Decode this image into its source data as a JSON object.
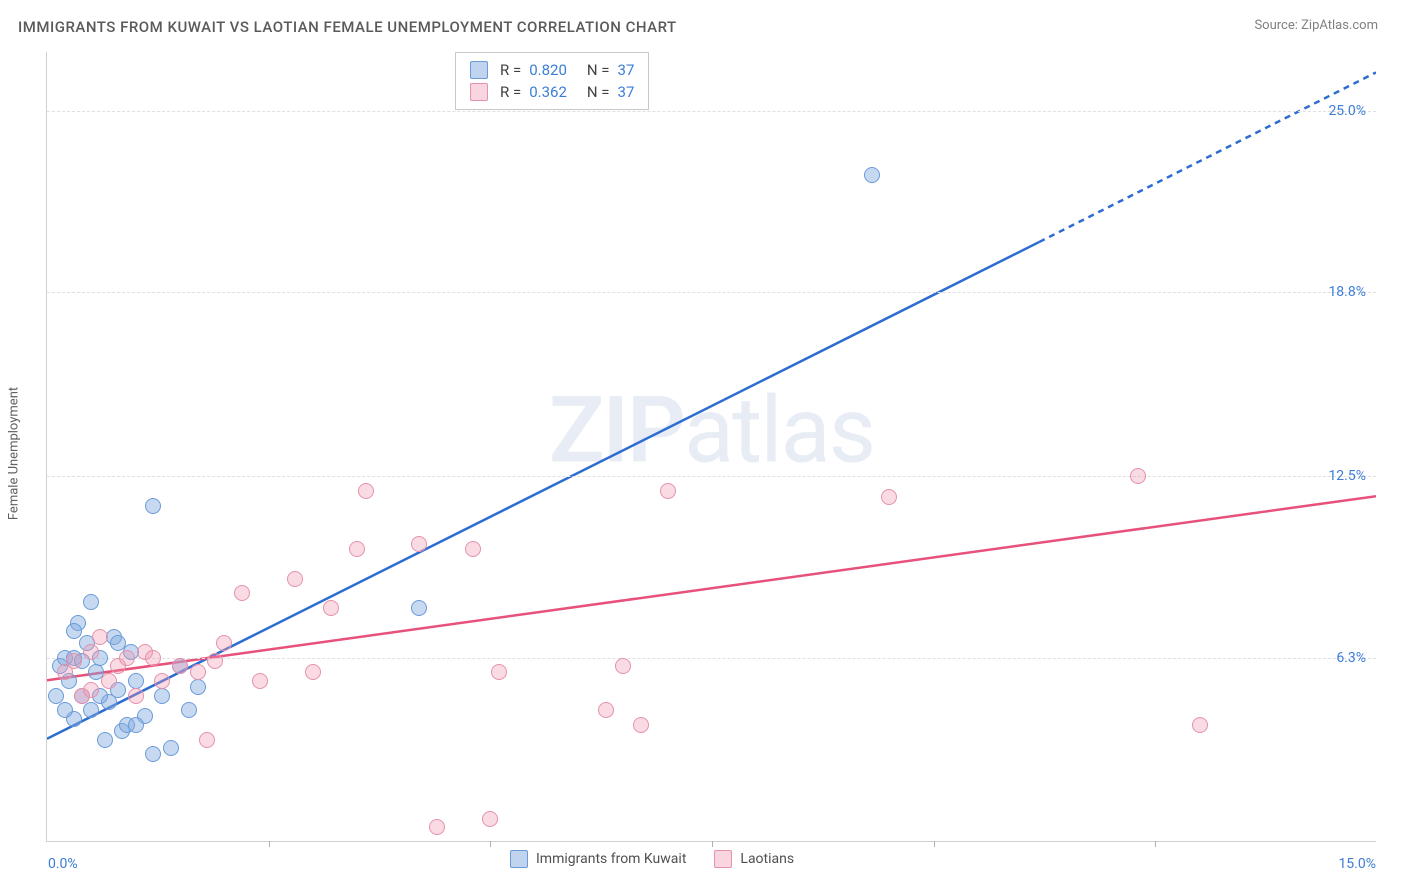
{
  "title": "IMMIGRANTS FROM KUWAIT VS LAOTIAN FEMALE UNEMPLOYMENT CORRELATION CHART",
  "source_label": "Source:",
  "source_name": "ZipAtlas.com",
  "watermark_zip": "ZIP",
  "watermark_atlas": "atlas",
  "y_axis_label": "Female Unemployment",
  "chart": {
    "type": "scatter",
    "xlim": [
      0,
      15
    ],
    "ylim": [
      0,
      27
    ],
    "y_ticks": [
      6.3,
      12.5,
      18.8,
      25.0
    ],
    "y_tick_labels": [
      "6.3%",
      "12.5%",
      "18.8%",
      "25.0%"
    ],
    "x_left_label": "0.0%",
    "x_right_label": "15.0%",
    "x_tick_positions": [
      2.5,
      5.0,
      7.5,
      10.0,
      12.5
    ],
    "background_color": "#ffffff",
    "grid_color": "#e0e0e0",
    "marker_size": 16,
    "series": [
      {
        "name": "Immigrants from Kuwait",
        "color_fill": "rgba(130,170,225,0.45)",
        "color_stroke": "#6a9bd8",
        "trend_color": "#2d6cd0",
        "trend_width": 2.5,
        "R": "0.820",
        "N": "37",
        "trend": {
          "x1": 0,
          "y1": 3.5,
          "x2": 11.2,
          "y2": 20.5,
          "x2_dash": 15,
          "y2_dash": 26.3
        },
        "points": [
          [
            0.1,
            5.0
          ],
          [
            0.15,
            6.0
          ],
          [
            0.2,
            6.3
          ],
          [
            0.25,
            5.5
          ],
          [
            0.3,
            4.2
          ],
          [
            0.3,
            6.3
          ],
          [
            0.35,
            7.5
          ],
          [
            0.4,
            5.0
          ],
          [
            0.45,
            6.8
          ],
          [
            0.5,
            4.5
          ],
          [
            0.5,
            8.2
          ],
          [
            0.55,
            5.8
          ],
          [
            0.6,
            6.3
          ],
          [
            0.65,
            3.5
          ],
          [
            0.7,
            4.8
          ],
          [
            0.75,
            7.0
          ],
          [
            0.8,
            5.2
          ],
          [
            0.85,
            3.8
          ],
          [
            0.9,
            4.0
          ],
          [
            0.95,
            6.5
          ],
          [
            1.0,
            5.5
          ],
          [
            1.1,
            4.3
          ],
          [
            1.2,
            3.0
          ],
          [
            1.3,
            5.0
          ],
          [
            1.4,
            3.2
          ],
          [
            1.5,
            6.0
          ],
          [
            1.6,
            4.5
          ],
          [
            1.7,
            5.3
          ],
          [
            1.2,
            11.5
          ],
          [
            4.2,
            8.0
          ],
          [
            9.3,
            22.8
          ],
          [
            0.2,
            4.5
          ],
          [
            0.3,
            7.2
          ],
          [
            0.6,
            5.0
          ],
          [
            0.8,
            6.8
          ],
          [
            1.0,
            4.0
          ],
          [
            0.4,
            6.2
          ]
        ]
      },
      {
        "name": "Laotians",
        "color_fill": "rgba(240,150,175,0.35)",
        "color_stroke": "#e592ab",
        "trend_color": "#e8517a",
        "trend_width": 2.5,
        "R": "0.362",
        "N": "37",
        "trend": {
          "x1": 0,
          "y1": 5.5,
          "x2": 15,
          "y2": 11.8
        },
        "points": [
          [
            0.2,
            5.8
          ],
          [
            0.3,
            6.2
          ],
          [
            0.4,
            5.0
          ],
          [
            0.5,
            6.5
          ],
          [
            0.6,
            7.0
          ],
          [
            0.7,
            5.5
          ],
          [
            0.8,
            6.0
          ],
          [
            0.9,
            6.3
          ],
          [
            1.0,
            5.0
          ],
          [
            1.1,
            6.5
          ],
          [
            1.3,
            5.5
          ],
          [
            1.5,
            6.0
          ],
          [
            1.7,
            5.8
          ],
          [
            1.8,
            3.5
          ],
          [
            1.9,
            6.2
          ],
          [
            2.2,
            8.5
          ],
          [
            2.4,
            5.5
          ],
          [
            2.8,
            9.0
          ],
          [
            3.0,
            5.8
          ],
          [
            3.2,
            8.0
          ],
          [
            3.5,
            10.0
          ],
          [
            3.6,
            12.0
          ],
          [
            4.2,
            10.2
          ],
          [
            4.4,
            0.5
          ],
          [
            4.8,
            10.0
          ],
          [
            5.0,
            0.8
          ],
          [
            5.1,
            5.8
          ],
          [
            6.3,
            4.5
          ],
          [
            6.5,
            6.0
          ],
          [
            6.7,
            4.0
          ],
          [
            7.0,
            12.0
          ],
          [
            9.5,
            11.8
          ],
          [
            12.3,
            12.5
          ],
          [
            13.0,
            4.0
          ],
          [
            1.2,
            6.3
          ],
          [
            0.5,
            5.2
          ],
          [
            2.0,
            6.8
          ]
        ]
      }
    ]
  },
  "legend_top": {
    "r_label": "R =",
    "n_label": "N ="
  },
  "legend_bottom": {
    "item1": "Immigrants from Kuwait",
    "item2": "Laotians"
  }
}
